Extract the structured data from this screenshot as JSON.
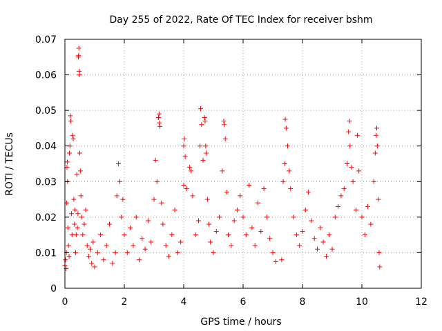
{
  "chart_data": {
    "type": "scatter",
    "title": "Day 255 of 2022, Rate Of TEC Index for receiver bshm",
    "xlabel": "GPS time / hours",
    "ylabel": "ROTI / TECUs",
    "xlim": [
      0,
      12
    ],
    "ylim": [
      0,
      0.07
    ],
    "x_ticks": [
      0,
      2,
      4,
      6,
      8,
      10,
      12
    ],
    "y_ticks": [
      0,
      0.01,
      0.02,
      0.03,
      0.04,
      0.05,
      0.06,
      0.07
    ],
    "x_tick_labels": [
      "0",
      "2",
      "4",
      "6",
      "8",
      "10",
      "12"
    ],
    "y_tick_labels": [
      "0",
      "0.01",
      "0.02",
      "0.03",
      "0.04",
      "0.05",
      "0.06",
      "0.07"
    ],
    "grid": true,
    "marker": "+",
    "color": "#ff0000",
    "series": [
      {
        "points": [
          [
            0.0,
            0.0065
          ],
          [
            0.02,
            0.008
          ],
          [
            0.04,
            0.0055
          ],
          [
            0.05,
            0.01
          ],
          [
            0.06,
            0.024
          ],
          [
            0.07,
            0.034
          ],
          [
            0.08,
            0.0355
          ],
          [
            0.09,
            0.03
          ],
          [
            0.1,
            0.017
          ],
          [
            0.12,
            0.012
          ],
          [
            0.14,
            0.009
          ],
          [
            0.15,
            0.038
          ],
          [
            0.17,
            0.04
          ],
          [
            0.18,
            0.0485
          ],
          [
            0.2,
            0.047
          ],
          [
            0.22,
            0.021
          ],
          [
            0.24,
            0.015
          ],
          [
            0.26,
            0.043
          ],
          [
            0.28,
            0.042
          ],
          [
            0.3,
            0.025
          ],
          [
            0.32,
            0.018
          ],
          [
            0.34,
            0.022
          ],
          [
            0.36,
            0.01
          ],
          [
            0.38,
            0.015
          ],
          [
            0.4,
            0.032
          ],
          [
            0.42,
            0.017
          ],
          [
            0.44,
            0.021
          ],
          [
            0.45,
            0.065
          ],
          [
            0.46,
            0.0655
          ],
          [
            0.47,
            0.0675
          ],
          [
            0.48,
            0.061
          ],
          [
            0.49,
            0.06
          ],
          [
            0.5,
            0.038
          ],
          [
            0.52,
            0.033
          ],
          [
            0.54,
            0.026
          ],
          [
            0.56,
            0.02
          ],
          [
            0.6,
            0.015
          ],
          [
            0.65,
            0.018
          ],
          [
            0.7,
            0.022
          ],
          [
            0.75,
            0.012
          ],
          [
            0.8,
            0.009
          ],
          [
            0.85,
            0.011
          ],
          [
            0.9,
            0.007
          ],
          [
            0.95,
            0.013
          ],
          [
            1.0,
            0.006
          ],
          [
            1.1,
            0.01
          ],
          [
            1.2,
            0.015
          ],
          [
            1.3,
            0.008
          ],
          [
            1.4,
            0.012
          ],
          [
            1.5,
            0.018
          ],
          [
            1.6,
            0.007
          ],
          [
            1.7,
            0.01
          ],
          [
            1.75,
            0.026
          ],
          [
            1.8,
            0.035
          ],
          [
            1.85,
            0.03
          ],
          [
            1.9,
            0.02
          ],
          [
            1.95,
            0.025
          ],
          [
            2.0,
            0.015
          ],
          [
            2.1,
            0.01
          ],
          [
            2.2,
            0.017
          ],
          [
            2.3,
            0.012
          ],
          [
            2.4,
            0.02
          ],
          [
            2.5,
            0.008
          ],
          [
            2.6,
            0.014
          ],
          [
            2.7,
            0.011
          ],
          [
            2.8,
            0.019
          ],
          [
            2.9,
            0.013
          ],
          [
            3.0,
            0.025
          ],
          [
            3.05,
            0.036
          ],
          [
            3.1,
            0.03
          ],
          [
            3.15,
            0.048
          ],
          [
            3.17,
            0.049
          ],
          [
            3.18,
            0.0465
          ],
          [
            3.2,
            0.0455
          ],
          [
            3.25,
            0.024
          ],
          [
            3.3,
            0.018
          ],
          [
            3.4,
            0.012
          ],
          [
            3.5,
            0.009
          ],
          [
            3.6,
            0.015
          ],
          [
            3.7,
            0.022
          ],
          [
            3.8,
            0.01
          ],
          [
            3.9,
            0.013
          ],
          [
            4.0,
            0.029
          ],
          [
            4.0,
            0.04
          ],
          [
            4.02,
            0.042
          ],
          [
            4.05,
            0.037
          ],
          [
            4.1,
            0.028
          ],
          [
            4.2,
            0.034
          ],
          [
            4.25,
            0.033
          ],
          [
            4.3,
            0.026
          ],
          [
            4.4,
            0.015
          ],
          [
            4.5,
            0.019
          ],
          [
            4.55,
            0.04
          ],
          [
            4.57,
            0.0505
          ],
          [
            4.6,
            0.046
          ],
          [
            4.65,
            0.036
          ],
          [
            4.7,
            0.048
          ],
          [
            4.72,
            0.047
          ],
          [
            4.74,
            0.04
          ],
          [
            4.76,
            0.038
          ],
          [
            4.8,
            0.025
          ],
          [
            4.85,
            0.018
          ],
          [
            4.9,
            0.013
          ],
          [
            5.0,
            0.01
          ],
          [
            5.1,
            0.016
          ],
          [
            5.2,
            0.02
          ],
          [
            5.3,
            0.033
          ],
          [
            5.35,
            0.047
          ],
          [
            5.37,
            0.046
          ],
          [
            5.4,
            0.042
          ],
          [
            5.45,
            0.027
          ],
          [
            5.5,
            0.015
          ],
          [
            5.6,
            0.012
          ],
          [
            5.7,
            0.019
          ],
          [
            5.8,
            0.022
          ],
          [
            5.9,
            0.026
          ],
          [
            6.0,
            0.02
          ],
          [
            6.1,
            0.015
          ],
          [
            6.2,
            0.029
          ],
          [
            6.3,
            0.017
          ],
          [
            6.4,
            0.012
          ],
          [
            6.5,
            0.024
          ],
          [
            6.6,
            0.016
          ],
          [
            6.7,
            0.028
          ],
          [
            6.8,
            0.02
          ],
          [
            6.9,
            0.014
          ],
          [
            7.0,
            0.01
          ],
          [
            7.1,
            0.0075
          ],
          [
            7.3,
            0.008
          ],
          [
            7.35,
            0.03
          ],
          [
            7.4,
            0.035
          ],
          [
            7.42,
            0.0475
          ],
          [
            7.45,
            0.045
          ],
          [
            7.5,
            0.04
          ],
          [
            7.55,
            0.033
          ],
          [
            7.6,
            0.028
          ],
          [
            7.7,
            0.02
          ],
          [
            7.8,
            0.015
          ],
          [
            7.9,
            0.012
          ],
          [
            8.0,
            0.016
          ],
          [
            8.1,
            0.022
          ],
          [
            8.2,
            0.027
          ],
          [
            8.3,
            0.019
          ],
          [
            8.4,
            0.014
          ],
          [
            8.5,
            0.011
          ],
          [
            8.6,
            0.017
          ],
          [
            8.7,
            0.013
          ],
          [
            8.8,
            0.009
          ],
          [
            8.9,
            0.015
          ],
          [
            9.0,
            0.011
          ],
          [
            9.1,
            0.02
          ],
          [
            9.2,
            0.023
          ],
          [
            9.3,
            0.026
          ],
          [
            9.4,
            0.028
          ],
          [
            9.5,
            0.035
          ],
          [
            9.55,
            0.044
          ],
          [
            9.58,
            0.047
          ],
          [
            9.6,
            0.04
          ],
          [
            9.65,
            0.034
          ],
          [
            9.7,
            0.03
          ],
          [
            9.8,
            0.022
          ],
          [
            9.85,
            0.043
          ],
          [
            9.9,
            0.033
          ],
          [
            10.0,
            0.02
          ],
          [
            10.1,
            0.015
          ],
          [
            10.2,
            0.023
          ],
          [
            10.3,
            0.018
          ],
          [
            10.4,
            0.03
          ],
          [
            10.45,
            0.038
          ],
          [
            10.48,
            0.043
          ],
          [
            10.5,
            0.045
          ],
          [
            10.52,
            0.04
          ],
          [
            10.55,
            0.025
          ],
          [
            10.58,
            0.01
          ],
          [
            10.6,
            0.006
          ]
        ]
      }
    ]
  }
}
